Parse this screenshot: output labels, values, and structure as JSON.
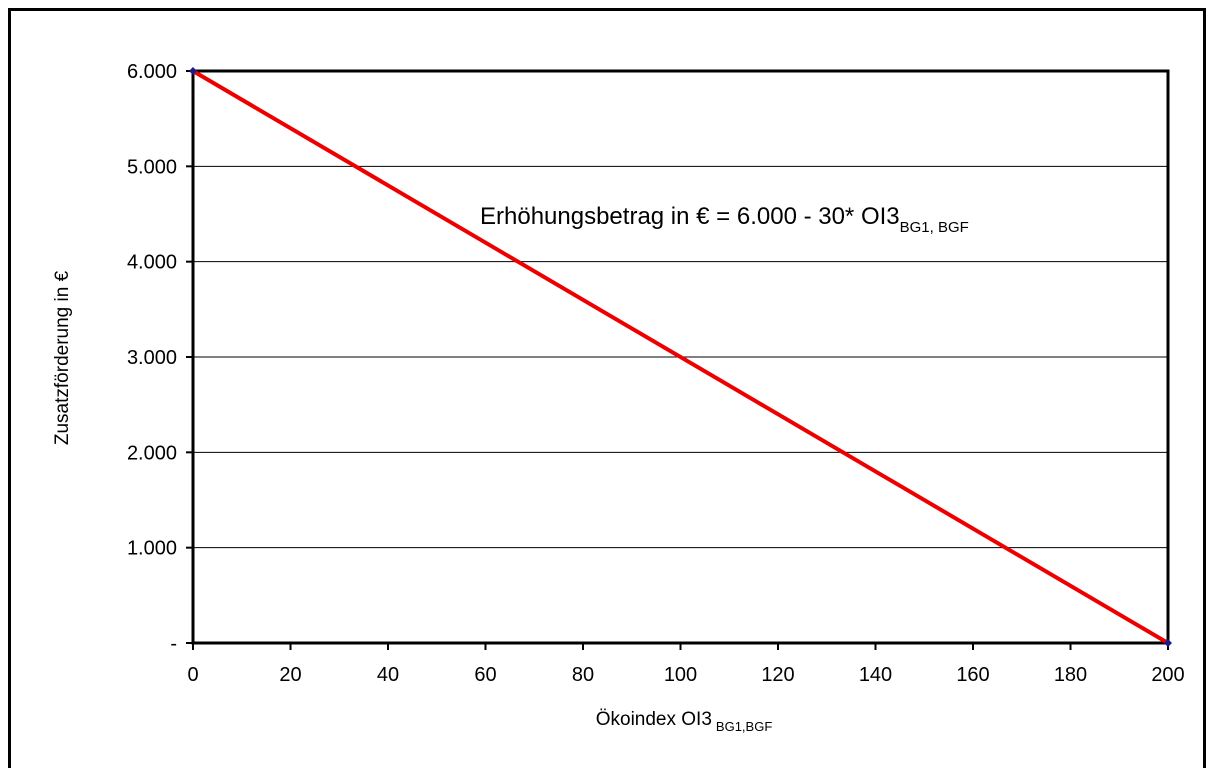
{
  "chart_data": {
    "type": "line",
    "title": "",
    "xlabel": "Ökoindex OI3",
    "xlabel_sub": "BG1,BGF",
    "ylabel": "Zusatzförderung in €",
    "xlim": [
      0,
      200
    ],
    "ylim": [
      0,
      6000
    ],
    "x_ticks": [
      0,
      20,
      40,
      60,
      80,
      100,
      120,
      140,
      160,
      180,
      200
    ],
    "y_ticks": [
      0,
      1000,
      2000,
      3000,
      4000,
      5000,
      6000
    ],
    "x_tick_labels": [
      "0",
      "20",
      "40",
      "60",
      "80",
      "100",
      "120",
      "140",
      "160",
      "180",
      "200"
    ],
    "y_tick_labels": [
      "-",
      "1.000",
      "2.000",
      "3.000",
      "4.000",
      "5.000",
      "6.000"
    ],
    "grid": "horizontal",
    "series": [
      {
        "color": "#ee0000",
        "marker_color": "#1a1a8c",
        "x": [
          0,
          200
        ],
        "y": [
          6000,
          0
        ]
      }
    ],
    "annotation": {
      "text": "Erhöhungsbetrag in € =  6.000 - 30* OI3",
      "sub": "BG1, BGF"
    }
  }
}
